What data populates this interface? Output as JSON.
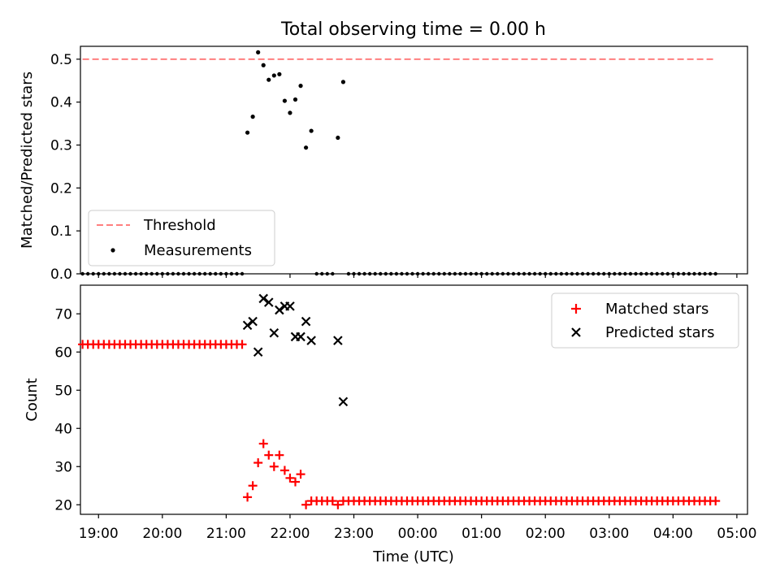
{
  "chart_data": {
    "title": "Total observing time = 0.00 h",
    "xlabel": "Time (UTC)",
    "x_ticks": [
      "19:00",
      "20:00",
      "21:00",
      "22:00",
      "23:00",
      "00:00",
      "01:00",
      "02:00",
      "03:00",
      "04:00",
      "05:00"
    ],
    "x_start": "18:45",
    "x_end": "04:40",
    "x_step_minutes": 5,
    "panels": [
      {
        "type": "scatter",
        "ylabel": "Matched/Predicted stars",
        "ylim": [
          0.0,
          0.53
        ],
        "y_ticks": [
          "0.0",
          "0.1",
          "0.2",
          "0.3",
          "0.4",
          "0.5"
        ],
        "legend": "lower-left",
        "threshold": {
          "name": "Threshold",
          "value": 0.5,
          "color": "#ff7f7f"
        },
        "series": [
          {
            "name": "Measurements",
            "color": "#000000",
            "points": [
              [
                "21:20",
                0.329
              ],
              [
                "21:25",
                0.366
              ],
              [
                "21:30",
                0.516
              ],
              [
                "21:35",
                0.486
              ],
              [
                "21:40",
                0.452
              ],
              [
                "21:45",
                0.462
              ],
              [
                "21:50",
                0.465
              ],
              [
                "21:55",
                0.403
              ],
              [
                "22:00",
                0.375
              ],
              [
                "22:05",
                0.406
              ],
              [
                "22:10",
                0.438
              ],
              [
                "22:15",
                0.294
              ],
              [
                "22:20",
                0.333
              ],
              [
                "22:45",
                0.317
              ],
              [
                "22:50",
                0.447
              ]
            ]
          }
        ],
        "zero_gaps": [
          [
            "21:20",
            "22:20"
          ],
          [
            "22:45",
            "22:50"
          ]
        ]
      },
      {
        "type": "scatter",
        "ylabel": "Count",
        "ylim": [
          17.5,
          77.5
        ],
        "y_ticks": [
          "20",
          "30",
          "40",
          "50",
          "60",
          "70"
        ],
        "legend": "upper-right",
        "series": [
          {
            "name": "Matched stars",
            "marker": "+",
            "color": "#ff0000",
            "segments": [
              {
                "from": "18:45",
                "to": "21:15",
                "value": 62
              },
              {
                "from": "22:20",
                "to": "22:40",
                "value": 21
              },
              {
                "from": "22:50",
                "to": "04:40",
                "value": 21
              }
            ],
            "points": [
              [
                "21:20",
                22
              ],
              [
                "21:25",
                25
              ],
              [
                "21:30",
                31
              ],
              [
                "21:35",
                36
              ],
              [
                "21:40",
                33
              ],
              [
                "21:45",
                30
              ],
              [
                "21:50",
                33
              ],
              [
                "21:55",
                29
              ],
              [
                "22:00",
                27
              ],
              [
                "22:05",
                26
              ],
              [
                "22:10",
                28
              ],
              [
                "22:15",
                20
              ],
              [
                "22:45",
                20
              ]
            ]
          },
          {
            "name": "Predicted stars",
            "marker": "x",
            "color": "#000000",
            "points": [
              [
                "21:20",
                67
              ],
              [
                "21:25",
                68
              ],
              [
                "21:30",
                60
              ],
              [
                "21:35",
                74
              ],
              [
                "21:40",
                73
              ],
              [
                "21:45",
                65
              ],
              [
                "21:50",
                71
              ],
              [
                "21:55",
                72
              ],
              [
                "22:00",
                72
              ],
              [
                "22:05",
                64
              ],
              [
                "22:10",
                64
              ],
              [
                "22:15",
                68
              ],
              [
                "22:20",
                63
              ],
              [
                "22:45",
                63
              ],
              [
                "22:50",
                47
              ]
            ]
          }
        ]
      }
    ]
  }
}
